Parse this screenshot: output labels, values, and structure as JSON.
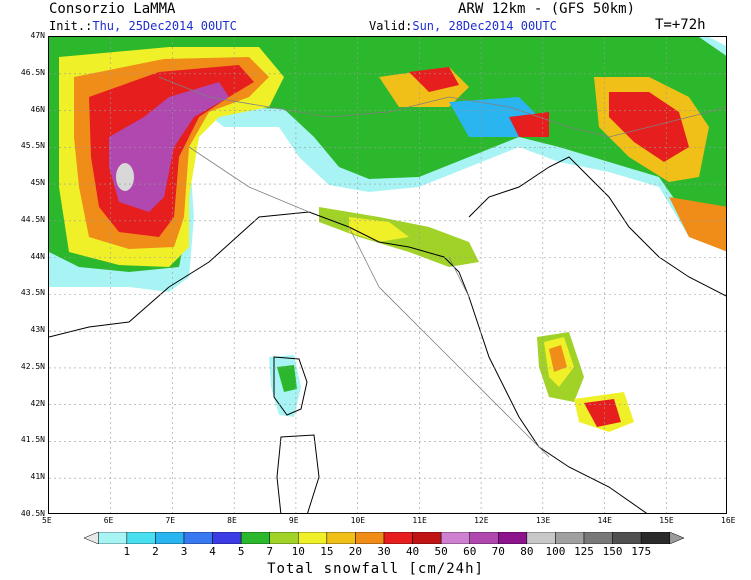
{
  "header": {
    "producer": "Consorzio LaMMA",
    "model": "ARW 12km - (GFS 50km)",
    "init_label": "Init.:",
    "init_value": "Thu, 25Dec2014 00UTC",
    "valid_label": "Valid:",
    "valid_value": "Sun, 28Dec2014 00UTC",
    "lead": "T=+72h"
  },
  "lat_labels": [
    "47N",
    "46.5N",
    "46N",
    "45.5N",
    "45N",
    "44.5N",
    "44N",
    "43.5N",
    "43N",
    "42.5N",
    "42N",
    "41.5N",
    "41N",
    "40.5N"
  ],
  "lon_labels": [
    "5E",
    "6E",
    "7E",
    "8E",
    "9E",
    "10E",
    "11E",
    "12E",
    "13E",
    "14E",
    "15E",
    "16E"
  ],
  "colorbar": {
    "labels": [
      "1",
      "2",
      "3",
      "4",
      "5",
      "7",
      "10",
      "15",
      "20",
      "30",
      "40",
      "50",
      "60",
      "70",
      "80",
      "100",
      "125",
      "150",
      "175"
    ],
    "colors": [
      "#a8f4f4",
      "#48e0f0",
      "#2ab4f0",
      "#3878f0",
      "#3c3ce6",
      "#2cb82c",
      "#a0d228",
      "#f0f028",
      "#f0c018",
      "#f08c18",
      "#e61e1e",
      "#c01414",
      "#d080d0",
      "#b048b0",
      "#8c148c",
      "#c8c8c8",
      "#a0a0a0",
      "#787878",
      "#505050",
      "#2a2a2a"
    ],
    "title": "Total snowfall [cm/24h]"
  }
}
